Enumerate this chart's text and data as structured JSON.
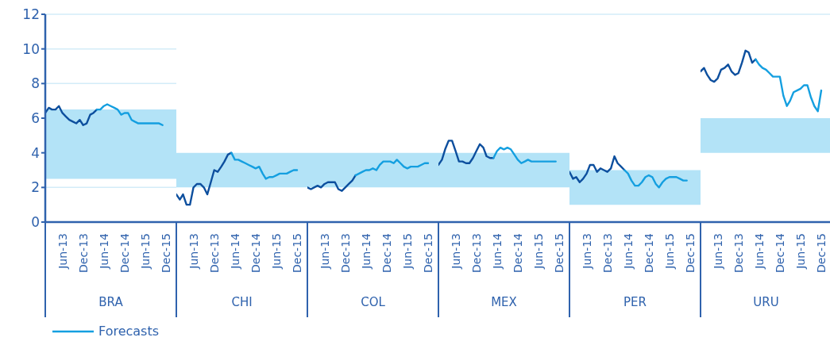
{
  "chart_data": [
    {
      "type": "line",
      "xlabel": "BRA",
      "xlim": [
        "2013-01",
        "2016-03"
      ],
      "xticks": [
        {
          "value": "2013-06",
          "label": "Jun-13"
        },
        {
          "value": "2013-12",
          "label": "Dec-13"
        },
        {
          "value": "2014-06",
          "label": "Jun-14"
        },
        {
          "value": "2014-12",
          "label": "Dec-14"
        },
        {
          "value": "2015-06",
          "label": "Jun-15"
        },
        {
          "value": "2015-12",
          "label": "Dec-15"
        }
      ],
      "ylim": [
        0,
        12
      ],
      "yticks": [
        0,
        2,
        4,
        6,
        8,
        10,
        12
      ],
      "grid": "y",
      "legend": "bottom",
      "bands": [
        {
          "axis": "y",
          "from": 2.5,
          "to": 6.5,
          "color": "#b3e3f7"
        }
      ],
      "series": [
        {
          "color": "#0d4f9e",
          "x": [
            "2013-01",
            "2013-02",
            "2013-03",
            "2013-04",
            "2013-05",
            "2013-06",
            "2013-07",
            "2013-08",
            "2013-09",
            "2013-10",
            "2013-11",
            "2013-12",
            "2014-01",
            "2014-02",
            "2014-03",
            "2014-04"
          ],
          "values": [
            6.3,
            6.6,
            6.5,
            6.5,
            6.7,
            6.3,
            6.1,
            5.9,
            5.8,
            5.7,
            5.9,
            5.6,
            5.7,
            6.2,
            6.3,
            6.5
          ]
        },
        {
          "name": "Forecasts",
          "color": "#149fe0",
          "x": [
            "2014-04",
            "2014-05",
            "2014-06",
            "2014-07",
            "2014-08",
            "2014-09",
            "2014-10",
            "2014-11",
            "2014-12",
            "2015-01",
            "2015-02",
            "2015-03",
            "2015-04",
            "2015-05",
            "2015-06",
            "2015-07",
            "2015-08",
            "2015-09",
            "2015-10",
            "2015-11"
          ],
          "values": [
            6.5,
            6.5,
            6.7,
            6.8,
            6.7,
            6.6,
            6.5,
            6.2,
            6.3,
            6.3,
            5.9,
            5.8,
            5.7,
            5.7,
            5.7,
            5.7,
            5.7,
            5.7,
            5.7,
            5.6
          ]
        }
      ]
    },
    {
      "type": "line",
      "xlabel": "CHI",
      "tick_labels": "x",
      "xlim": [
        "2013-01",
        "2016-03"
      ],
      "xticks": [
        {
          "value": "2013-06",
          "label": "Jun-13"
        },
        {
          "value": "2013-12",
          "label": "Dec-13"
        },
        {
          "value": "2014-06",
          "label": "Jun-14"
        },
        {
          "value": "2014-12",
          "label": "Dec-14"
        },
        {
          "value": "2015-06",
          "label": "Jun-15"
        },
        {
          "value": "2015-12",
          "label": "Dec-15"
        }
      ],
      "ylim": [
        0,
        12
      ],
      "yticks": [
        0,
        2,
        4,
        6,
        8,
        10,
        12
      ],
      "grid": "y",
      "bands": [
        {
          "axis": "y",
          "from": 2,
          "to": 4,
          "color": "#b3e3f7"
        }
      ],
      "series": [
        {
          "color": "#0d4f9e",
          "x": [
            "2013-01",
            "2013-02",
            "2013-03",
            "2013-04",
            "2013-05",
            "2013-06",
            "2013-07",
            "2013-08",
            "2013-09",
            "2013-10",
            "2013-11",
            "2013-12",
            "2014-01",
            "2014-02",
            "2014-03",
            "2014-04",
            "2014-05"
          ],
          "values": [
            1.6,
            1.3,
            1.6,
            1.0,
            1.0,
            2.0,
            2.2,
            2.2,
            2.0,
            1.6,
            2.3,
            3.0,
            2.9,
            3.2,
            3.5,
            3.9,
            4.0
          ]
        },
        {
          "color": "#149fe0",
          "x": [
            "2014-05",
            "2014-06",
            "2014-07",
            "2014-08",
            "2014-09",
            "2014-10",
            "2014-11",
            "2014-12",
            "2015-01",
            "2015-02",
            "2015-03",
            "2015-04",
            "2015-05",
            "2015-06",
            "2015-07",
            "2015-08",
            "2015-09",
            "2015-10",
            "2015-11",
            "2015-12"
          ],
          "values": [
            4.0,
            3.6,
            3.6,
            3.5,
            3.4,
            3.3,
            3.2,
            3.1,
            3.2,
            2.8,
            2.5,
            2.6,
            2.6,
            2.7,
            2.8,
            2.8,
            2.8,
            2.9,
            3.0,
            3.0
          ]
        }
      ]
    },
    {
      "type": "line",
      "xlabel": "COL",
      "tick_labels": "x",
      "xlim": [
        "2013-01",
        "2016-03"
      ],
      "xticks": [
        {
          "value": "2013-06",
          "label": "Jun-13"
        },
        {
          "value": "2013-12",
          "label": "Dec-13"
        },
        {
          "value": "2014-06",
          "label": "Jun-14"
        },
        {
          "value": "2014-12",
          "label": "Dec-14"
        },
        {
          "value": "2015-06",
          "label": "Jun-15"
        },
        {
          "value": "2015-12",
          "label": "Dec-15"
        }
      ],
      "ylim": [
        0,
        12
      ],
      "yticks": [
        0,
        2,
        4,
        6,
        8,
        10,
        12
      ],
      "grid": "y",
      "bands": [
        {
          "axis": "y",
          "from": 2,
          "to": 4,
          "color": "#b3e3f7"
        }
      ],
      "series": [
        {
          "color": "#0d4f9e",
          "x": [
            "2013-01",
            "2013-02",
            "2013-03",
            "2013-04",
            "2013-05",
            "2013-06",
            "2013-07",
            "2013-08",
            "2013-09",
            "2013-10",
            "2013-11",
            "2013-12",
            "2014-01",
            "2014-02",
            "2014-03"
          ],
          "values": [
            2.0,
            1.9,
            2.0,
            2.1,
            2.0,
            2.2,
            2.3,
            2.3,
            2.3,
            1.9,
            1.8,
            2.0,
            2.2,
            2.4,
            2.7
          ]
        },
        {
          "color": "#149fe0",
          "x": [
            "2014-03",
            "2014-04",
            "2014-05",
            "2014-06",
            "2014-07",
            "2014-08",
            "2014-09",
            "2014-10",
            "2014-11",
            "2014-12",
            "2015-01",
            "2015-02",
            "2015-03",
            "2015-04",
            "2015-05",
            "2015-06",
            "2015-07",
            "2015-08",
            "2015-09",
            "2015-10",
            "2015-11",
            "2015-12"
          ],
          "values": [
            2.7,
            2.8,
            2.9,
            3.0,
            3.0,
            3.1,
            3.0,
            3.3,
            3.5,
            3.5,
            3.5,
            3.4,
            3.6,
            3.4,
            3.2,
            3.1,
            3.2,
            3.2,
            3.2,
            3.3,
            3.4,
            3.4
          ]
        }
      ]
    },
    {
      "type": "line",
      "xlabel": "MEX",
      "tick_labels": "x",
      "xlim": [
        "2013-01",
        "2016-03"
      ],
      "xticks": [
        {
          "value": "2013-06",
          "label": "Jun-13"
        },
        {
          "value": "2013-12",
          "label": "Dec-13"
        },
        {
          "value": "2014-06",
          "label": "Jun-14"
        },
        {
          "value": "2014-12",
          "label": "Dec-14"
        },
        {
          "value": "2015-06",
          "label": "Jun-15"
        },
        {
          "value": "2015-12",
          "label": "Dec-15"
        }
      ],
      "ylim": [
        0,
        12
      ],
      "yticks": [
        0,
        2,
        4,
        6,
        8,
        10,
        12
      ],
      "grid": "y",
      "bands": [
        {
          "axis": "y",
          "from": 2,
          "to": 4,
          "color": "#b3e3f7"
        }
      ],
      "series": [
        {
          "color": "#0d4f9e",
          "x": [
            "2013-01",
            "2013-02",
            "2013-03",
            "2013-04",
            "2013-05",
            "2013-06",
            "2013-07",
            "2013-08",
            "2013-09",
            "2013-10",
            "2013-11",
            "2013-12",
            "2014-01",
            "2014-02",
            "2014-03",
            "2014-04",
            "2014-05"
          ],
          "values": [
            3.3,
            3.6,
            4.2,
            4.7,
            4.7,
            4.1,
            3.5,
            3.5,
            3.4,
            3.4,
            3.7,
            4.1,
            4.5,
            4.3,
            3.8,
            3.7,
            3.7
          ]
        },
        {
          "color": "#149fe0",
          "x": [
            "2014-05",
            "2014-06",
            "2014-07",
            "2014-08",
            "2014-09",
            "2014-10",
            "2014-11",
            "2014-12",
            "2015-01",
            "2015-02",
            "2015-03",
            "2015-04",
            "2015-05",
            "2015-06",
            "2015-07",
            "2015-08",
            "2015-09",
            "2015-10",
            "2015-11"
          ],
          "values": [
            3.7,
            4.1,
            4.3,
            4.2,
            4.3,
            4.2,
            3.9,
            3.6,
            3.4,
            3.5,
            3.6,
            3.5,
            3.5,
            3.5,
            3.5,
            3.5,
            3.5,
            3.5,
            3.5
          ]
        }
      ]
    },
    {
      "type": "line",
      "xlabel": "PER",
      "tick_labels": "x",
      "xlim": [
        "2013-01",
        "2016-03"
      ],
      "xticks": [
        {
          "value": "2013-06",
          "label": "Jun-13"
        },
        {
          "value": "2013-12",
          "label": "Dec-13"
        },
        {
          "value": "2014-06",
          "label": "Jun-14"
        },
        {
          "value": "2014-12",
          "label": "Dec-14"
        },
        {
          "value": "2015-06",
          "label": "Jun-15"
        },
        {
          "value": "2015-12",
          "label": "Dec-15"
        }
      ],
      "ylim": [
        0,
        12
      ],
      "yticks": [
        0,
        2,
        4,
        6,
        8,
        10,
        12
      ],
      "grid": "y",
      "bands": [
        {
          "axis": "y",
          "from": 1,
          "to": 3,
          "color": "#b3e3f7"
        }
      ],
      "series": [
        {
          "color": "#0d4f9e",
          "x": [
            "2013-01",
            "2013-02",
            "2013-03",
            "2013-04",
            "2013-05",
            "2013-06",
            "2013-07",
            "2013-08",
            "2013-09",
            "2013-10",
            "2013-11",
            "2013-12",
            "2014-01",
            "2014-02",
            "2014-03",
            "2014-04",
            "2014-05"
          ],
          "values": [
            2.9,
            2.5,
            2.6,
            2.3,
            2.5,
            2.8,
            3.3,
            3.3,
            2.9,
            3.1,
            3.0,
            2.9,
            3.1,
            3.8,
            3.4,
            3.2,
            3.0
          ]
        },
        {
          "color": "#149fe0",
          "x": [
            "2014-05",
            "2014-06",
            "2014-07",
            "2014-08",
            "2014-09",
            "2014-10",
            "2014-11",
            "2014-12",
            "2015-01",
            "2015-02",
            "2015-03",
            "2015-04",
            "2015-05",
            "2015-06",
            "2015-07",
            "2015-08",
            "2015-09",
            "2015-10",
            "2015-11"
          ],
          "values": [
            3.0,
            2.8,
            2.4,
            2.1,
            2.1,
            2.3,
            2.6,
            2.7,
            2.6,
            2.2,
            2.0,
            2.3,
            2.5,
            2.6,
            2.6,
            2.6,
            2.5,
            2.4,
            2.4
          ]
        }
      ]
    },
    {
      "type": "line",
      "xlabel": "URU",
      "tick_labels": "x",
      "xlim": [
        "2013-01",
        "2016-03"
      ],
      "xticks": [
        {
          "value": "2013-06",
          "label": "Jun-13"
        },
        {
          "value": "2013-12",
          "label": "Dec-13"
        },
        {
          "value": "2014-06",
          "label": "Jun-14"
        },
        {
          "value": "2014-12",
          "label": "Dec-14"
        },
        {
          "value": "2015-06",
          "label": "Jun-15"
        },
        {
          "value": "2015-12",
          "label": "Dec-15"
        }
      ],
      "ylim": [
        0,
        12
      ],
      "yticks": [
        0,
        2,
        4,
        6,
        8,
        10,
        12
      ],
      "grid": "y",
      "bands": [
        {
          "axis": "y",
          "from": 4,
          "to": 6,
          "color": "#b3e3f7"
        }
      ],
      "series": [
        {
          "color": "#0d4f9e",
          "x": [
            "2013-01",
            "2013-02",
            "2013-03",
            "2013-04",
            "2013-05",
            "2013-06",
            "2013-07",
            "2013-08",
            "2013-09",
            "2013-10",
            "2013-11",
            "2013-12",
            "2014-01",
            "2014-02",
            "2014-03",
            "2014-04",
            "2014-05"
          ],
          "values": [
            8.7,
            8.9,
            8.5,
            8.2,
            8.1,
            8.3,
            8.8,
            8.9,
            9.1,
            8.7,
            8.5,
            8.6,
            9.2,
            9.9,
            9.8,
            9.2,
            9.4
          ]
        },
        {
          "color": "#149fe0",
          "x": [
            "2014-05",
            "2014-06",
            "2014-07",
            "2014-08",
            "2014-09",
            "2014-10",
            "2014-11",
            "2014-12",
            "2015-01",
            "2015-02",
            "2015-03",
            "2015-04",
            "2015-05",
            "2015-06",
            "2015-07",
            "2015-08",
            "2015-09",
            "2015-10",
            "2015-11",
            "2015-12"
          ],
          "values": [
            9.4,
            9.1,
            8.9,
            8.8,
            8.6,
            8.4,
            8.4,
            8.4,
            7.3,
            6.7,
            7.0,
            7.5,
            7.6,
            7.7,
            7.9,
            7.9,
            7.2,
            6.7,
            6.4,
            7.6
          ]
        }
      ]
    }
  ]
}
